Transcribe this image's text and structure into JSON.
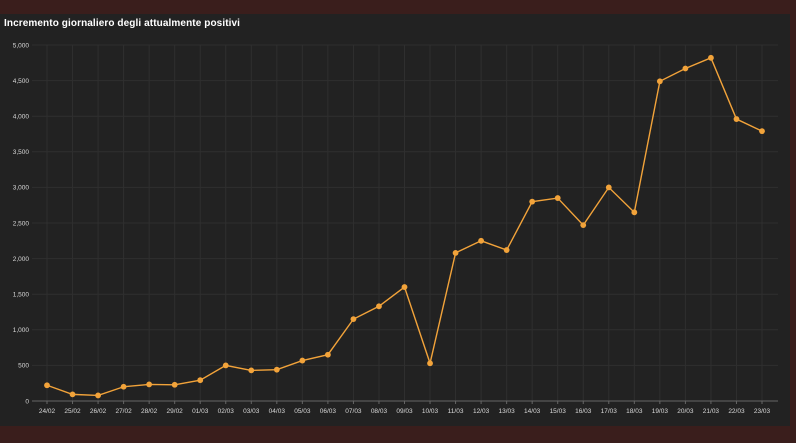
{
  "chart_data": {
    "type": "line",
    "title": "Incremento giornaliero degli attualmente positivi",
    "xlabel": "",
    "ylabel": "",
    "ylim": [
      0,
      5000
    ],
    "yticks": [
      0,
      500,
      1000,
      1500,
      2000,
      2500,
      3000,
      3500,
      4000,
      4500,
      5000
    ],
    "ytick_labels": [
      "0",
      "500",
      "1,000",
      "1,500",
      "2,000",
      "2,500",
      "3,000",
      "3,500",
      "4,000",
      "4,500",
      "5,000"
    ],
    "grid": true,
    "legend": "none",
    "colors": {
      "series": "#f2a33a",
      "background": "#222222",
      "frame": "#3a1e1c"
    },
    "categories": [
      "24/02",
      "25/02",
      "26/02",
      "27/02",
      "28/02",
      "29/02",
      "01/03",
      "02/03",
      "03/03",
      "04/03",
      "05/03",
      "06/03",
      "07/03",
      "08/03",
      "09/03",
      "10/03",
      "11/03",
      "12/03",
      "13/03",
      "14/03",
      "15/03",
      "16/03",
      "17/03",
      "18/03",
      "19/03",
      "20/03",
      "21/03",
      "22/03",
      "23/03"
    ],
    "series": [
      {
        "values": [
          221,
          93,
          78,
          200,
          233,
          228,
          292,
          500,
          430,
          440,
          568,
          650,
          1150,
          1330,
          1600,
          530,
          2080,
          2250,
          2120,
          2800,
          2850,
          2470,
          3000,
          2650,
          4490,
          4670,
          4820,
          3960,
          3790
        ]
      }
    ]
  }
}
